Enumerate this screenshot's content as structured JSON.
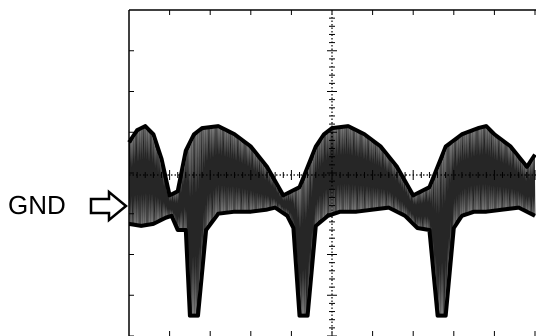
{
  "chart_data": {
    "type": "line",
    "title": "",
    "xlabel": "",
    "ylabel": "",
    "grid": true,
    "divisions": {
      "x": 10,
      "y": 8
    },
    "trace_color": "#000000",
    "grid_color": "#000000",
    "ground_marker": {
      "label": "GND",
      "icon": "hollow-right-arrow"
    },
    "series": [
      {
        "kind": "upper-envelope",
        "x": [
          0.0,
          0.2,
          0.4,
          0.6,
          0.8,
          1.0,
          1.2,
          1.4,
          1.6,
          1.8,
          2.2,
          2.6,
          3.0,
          3.4,
          3.8,
          4.2,
          4.6,
          4.8,
          5.0,
          5.4,
          5.8,
          6.2,
          6.6,
          7.0,
          7.4,
          7.8,
          8.2,
          8.6,
          8.8,
          9.0,
          9.4,
          9.8,
          10.0
        ],
        "values": [
          0.8,
          1.1,
          1.2,
          1.0,
          0.4,
          -0.5,
          -0.4,
          0.6,
          1.0,
          1.15,
          1.2,
          1.0,
          0.7,
          0.2,
          -0.5,
          -0.3,
          0.7,
          1.0,
          1.15,
          1.2,
          1.0,
          0.7,
          0.2,
          -0.5,
          -0.3,
          0.7,
          1.0,
          1.15,
          1.2,
          1.0,
          0.7,
          0.2,
          0.5
        ]
      },
      {
        "kind": "lower-envelope",
        "x": [
          0.0,
          0.3,
          0.6,
          0.9,
          1.05,
          1.2,
          1.4,
          1.5,
          1.7,
          1.9,
          2.2,
          2.6,
          3.0,
          3.4,
          3.6,
          3.9,
          4.05,
          4.2,
          4.4,
          4.6,
          4.9,
          5.2,
          5.6,
          6.0,
          6.4,
          6.8,
          7.1,
          7.4,
          7.6,
          7.8,
          8.0,
          8.2,
          8.5,
          8.8,
          9.2,
          9.6,
          10.0
        ],
        "values": [
          -1.2,
          -1.25,
          -1.2,
          -1.05,
          -1.0,
          -1.35,
          -1.35,
          -3.45,
          -3.45,
          -1.35,
          -0.95,
          -0.9,
          -0.9,
          -0.85,
          -0.8,
          -1.0,
          -1.3,
          -3.45,
          -3.45,
          -1.25,
          -1.0,
          -0.9,
          -0.9,
          -0.85,
          -0.8,
          -1.0,
          -1.3,
          -1.35,
          -3.45,
          -3.45,
          -1.3,
          -1.0,
          -0.9,
          -0.9,
          -0.85,
          -0.8,
          -1.0
        ]
      }
    ]
  }
}
